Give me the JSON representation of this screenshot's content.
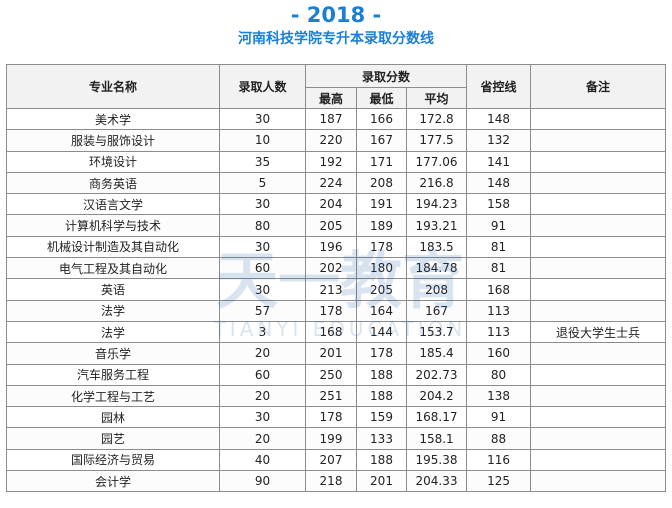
{
  "header": {
    "year": "- 2018 -",
    "subtitle": "河南科技学院专升本录取分数线"
  },
  "table": {
    "columns": {
      "major": "专业名称",
      "admitted": "录取人数",
      "scores": "录取分数",
      "max": "最高",
      "min": "最低",
      "avg": "平均",
      "control_line": "省控线",
      "note": "备注"
    },
    "rows": [
      {
        "major": "美术学",
        "admitted": "30",
        "max": "187",
        "min": "166",
        "avg": "172.8",
        "control_line": "148",
        "note": ""
      },
      {
        "major": "服装与服饰设计",
        "admitted": "10",
        "max": "220",
        "min": "167",
        "avg": "177.5",
        "control_line": "132",
        "note": ""
      },
      {
        "major": "环境设计",
        "admitted": "35",
        "max": "192",
        "min": "171",
        "avg": "177.06",
        "control_line": "141",
        "note": ""
      },
      {
        "major": "商务英语",
        "admitted": "5",
        "max": "224",
        "min": "208",
        "avg": "216.8",
        "control_line": "148",
        "note": ""
      },
      {
        "major": "汉语言文学",
        "admitted": "30",
        "max": "204",
        "min": "191",
        "avg": "194.23",
        "control_line": "158",
        "note": ""
      },
      {
        "major": "计算机科学与技术",
        "admitted": "80",
        "max": "205",
        "min": "189",
        "avg": "193.21",
        "control_line": "91",
        "note": ""
      },
      {
        "major": "机械设计制造及其自动化",
        "admitted": "30",
        "max": "196",
        "min": "178",
        "avg": "183.5",
        "control_line": "81",
        "note": ""
      },
      {
        "major": "电气工程及其自动化",
        "admitted": "60",
        "max": "202",
        "min": "180",
        "avg": "184.78",
        "control_line": "81",
        "note": ""
      },
      {
        "major": "英语",
        "admitted": "30",
        "max": "213",
        "min": "205",
        "avg": "208",
        "control_line": "168",
        "note": ""
      },
      {
        "major": "法学",
        "admitted": "57",
        "max": "178",
        "min": "164",
        "avg": "167",
        "control_line": "113",
        "note": ""
      },
      {
        "major": "法学",
        "admitted": "3",
        "max": "168",
        "min": "144",
        "avg": "153.7",
        "control_line": "113",
        "note": "退役大学生士兵"
      },
      {
        "major": "音乐学",
        "admitted": "20",
        "max": "201",
        "min": "178",
        "avg": "185.4",
        "control_line": "160",
        "note": ""
      },
      {
        "major": "汽车服务工程",
        "admitted": "60",
        "max": "250",
        "min": "188",
        "avg": "202.73",
        "control_line": "80",
        "note": ""
      },
      {
        "major": "化学工程与工艺",
        "admitted": "20",
        "max": "251",
        "min": "188",
        "avg": "204.2",
        "control_line": "138",
        "note": ""
      },
      {
        "major": "园林",
        "admitted": "30",
        "max": "178",
        "min": "159",
        "avg": "168.17",
        "control_line": "91",
        "note": ""
      },
      {
        "major": "园艺",
        "admitted": "20",
        "max": "199",
        "min": "133",
        "avg": "158.1",
        "control_line": "88",
        "note": ""
      },
      {
        "major": "国际经济与贸易",
        "admitted": "40",
        "max": "207",
        "min": "188",
        "avg": "195.38",
        "control_line": "116",
        "note": ""
      },
      {
        "major": "会计学",
        "admitted": "90",
        "max": "218",
        "min": "201",
        "avg": "204.33",
        "control_line": "125",
        "note": ""
      }
    ]
  },
  "watermark": {
    "text_cn": "天一教育",
    "text_en": "TIANYI EDUCATION",
    "color": "#1a5fa8"
  }
}
